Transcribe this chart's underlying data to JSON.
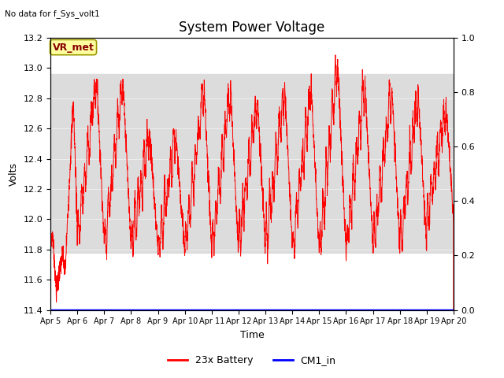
{
  "title": "System Power Voltage",
  "top_left_text": "No data for f_Sys_volt1",
  "ylabel_left": "Volts",
  "xlabel": "Time",
  "ylim_left": [
    11.4,
    13.2
  ],
  "ylim_right": [
    0.0,
    1.0
  ],
  "yticks_left": [
    11.4,
    11.6,
    11.8,
    12.0,
    12.2,
    12.4,
    12.6,
    12.8,
    13.0,
    13.2
  ],
  "yticks_right": [
    0.0,
    0.2,
    0.4,
    0.6,
    0.8,
    1.0
  ],
  "xtick_labels": [
    "Apr 5",
    "Apr 6",
    "Apr 7",
    "Apr 8",
    "Apr 9",
    "Apr 10",
    "Apr 11",
    "Apr 12",
    "Apr 13",
    "Apr 14",
    "Apr 15",
    "Apr 16",
    "Apr 17",
    "Apr 18",
    "Apr 19",
    "Apr 20"
  ],
  "line_color_battery": "#FF0000",
  "line_color_cm1": "#0000FF",
  "legend_labels": [
    "23x Battery",
    "CM1_in"
  ],
  "annotation_text": "VR_met",
  "annotation_box_color": "#FFFFA0",
  "annotation_text_color": "#880000",
  "background_gray": "#DCDCDC",
  "gray_band_ylow": 11.78,
  "gray_band_yhigh": 12.96,
  "title_fontsize": 12,
  "axis_fontsize": 9,
  "tick_fontsize": 8
}
